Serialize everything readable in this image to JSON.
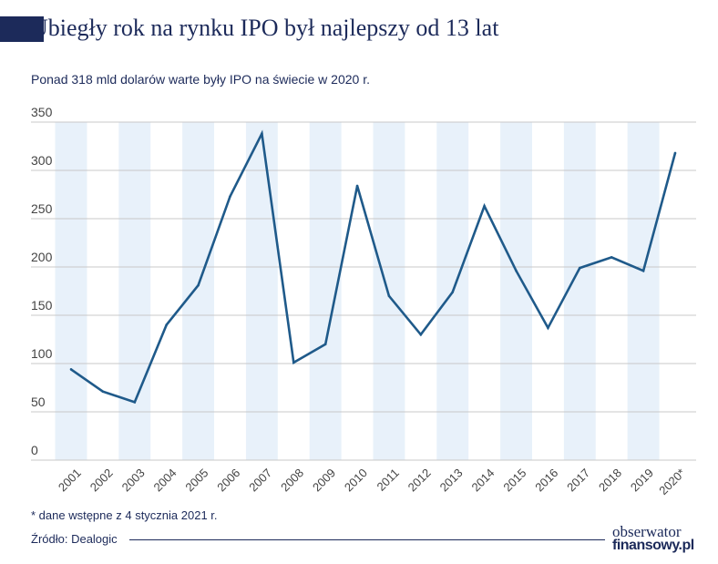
{
  "header": {
    "title": "Ubiegły rok na rynku IPO był najlepszy od 13 lat",
    "subtitle": "Ponad 318 mld dolarów warte były IPO na świecie w 2020 r."
  },
  "footer": {
    "footnote": "* dane wstępne z 4 stycznia 2021 r.",
    "source": "Źródło: Dealogic",
    "logo_line1": "obserwator",
    "logo_line2": "finansowy.pl"
  },
  "colors": {
    "line": "#1f5a8a",
    "band": "#e8f1fa",
    "grid": "#c8c8c8",
    "brand": "#1c2a5a"
  },
  "chart_data": {
    "type": "line",
    "title": "Ubiegły rok na rynku IPO był najlepszy od 13 lat",
    "subtitle": "Ponad 318 mld dolarów warte były IPO na świecie w 2020 r.",
    "xlabel": "",
    "ylabel": "",
    "categories": [
      "2001",
      "2002",
      "2003",
      "2004",
      "2005",
      "2006",
      "2007",
      "2008",
      "2009",
      "2010",
      "2011",
      "2012",
      "2013",
      "2014",
      "2015",
      "2016",
      "2017",
      "2018",
      "2019",
      "2020*"
    ],
    "series": [
      {
        "values": [
          94,
          71,
          60,
          140,
          181,
          273,
          338,
          101,
          120,
          284,
          170,
          130,
          174,
          263,
          196,
          137,
          199,
          210,
          196,
          318
        ]
      }
    ],
    "ylim": [
      0,
      350
    ],
    "yticks": [
      0,
      50,
      100,
      150,
      200,
      250,
      300,
      350
    ],
    "grid": true,
    "legend": "none"
  }
}
